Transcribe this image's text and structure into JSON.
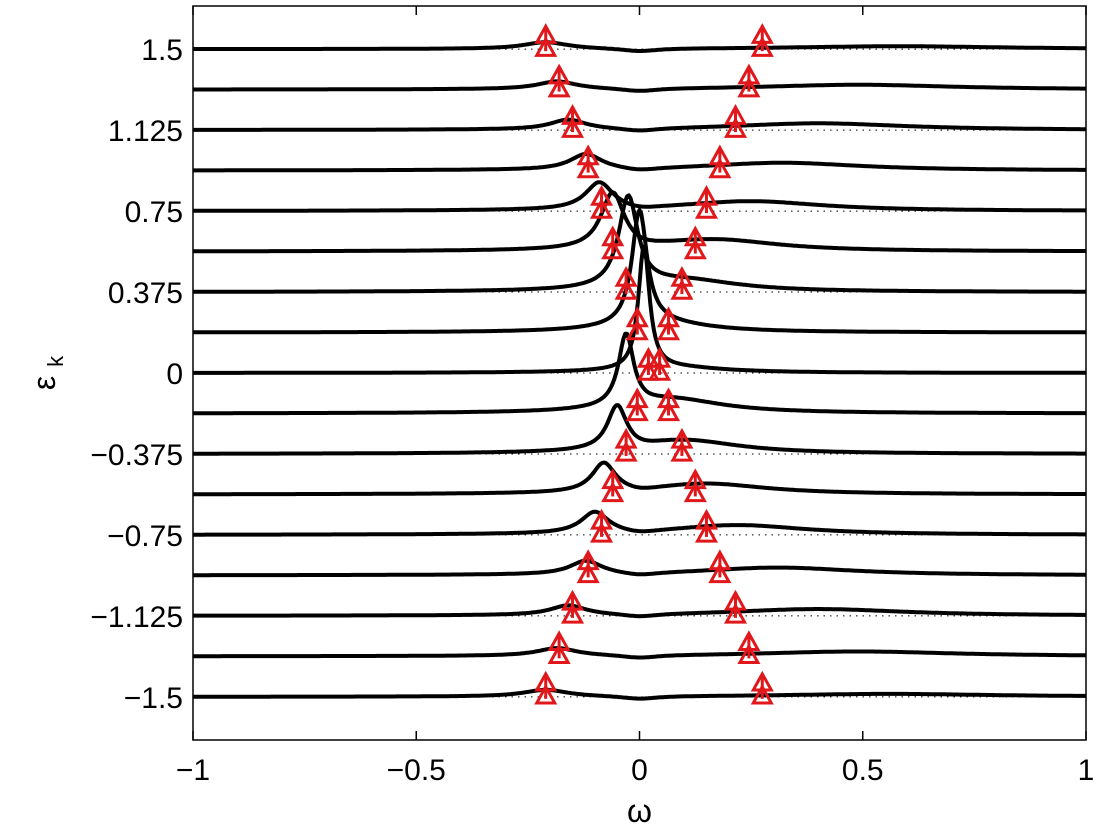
{
  "chart_data": {
    "type": "line",
    "title": "",
    "xlabel": "ω",
    "ylabel_main": "ε",
    "ylabel_sub": "k",
    "xlim": [
      -1,
      1
    ],
    "ylim": [
      -1.7,
      1.7
    ],
    "grid": "dotted horizontal reference line at each labeled ε_k",
    "legend": "none",
    "x_ticks": [
      -1,
      -0.5,
      0,
      0.5,
      1
    ],
    "x_tick_labels": [
      "−1",
      "−0.5",
      "0",
      "0.5",
      "1"
    ],
    "y_ticks": [
      -1.5,
      -1.125,
      -0.75,
      -0.375,
      0,
      0.375,
      0.75,
      1.125,
      1.5
    ],
    "y_tick_labels": [
      "−1.5",
      "−1.125",
      "−0.75",
      "−0.375",
      "0",
      "0.375",
      "0.75",
      "1.125",
      "1.5"
    ],
    "curve_color": "#000000",
    "marker_color": "#e0181b",
    "marker_shape": "triangle",
    "series": [
      {
        "eps": 1.5,
        "peaks": [
          {
            "x": -0.21,
            "h": 0.07
          },
          {
            "x": 0.58,
            "h": 0.03
          }
        ]
      },
      {
        "eps": 1.3125,
        "peaks": [
          {
            "x": -0.185,
            "h": 0.08
          },
          {
            "x": 0.49,
            "h": 0.05
          }
        ]
      },
      {
        "eps": 1.125,
        "peaks": [
          {
            "x": -0.16,
            "h": 0.1
          },
          {
            "x": 0.4,
            "h": 0.07
          }
        ]
      },
      {
        "eps": 0.9375,
        "peaks": [
          {
            "x": -0.12,
            "h": 0.16
          },
          {
            "x": 0.32,
            "h": 0.08
          }
        ]
      },
      {
        "eps": 0.75,
        "peaks": [
          {
            "x": -0.09,
            "h": 0.28
          },
          {
            "x": 0.25,
            "h": 0.1
          }
        ]
      },
      {
        "eps": 0.5625,
        "peaks": [
          {
            "x": -0.06,
            "h": 0.58
          },
          {
            "x": 0.17,
            "h": 0.12
          }
        ]
      },
      {
        "eps": 0.375,
        "peaks": [
          {
            "x": -0.025,
            "h": 0.95
          },
          {
            "x": 0.1,
            "h": 0.12
          }
        ]
      },
      {
        "eps": 0.1875,
        "peaks": [
          {
            "x": 0.0,
            "h": 1.2
          },
          {
            "x": 0.04,
            "h": 0.1
          }
        ]
      },
      {
        "eps": 0.0,
        "peaks": [
          {
            "x": 0.01,
            "h": 1.3
          },
          {
            "x": 0.07,
            "h": 0.06
          }
        ]
      },
      {
        "eps": -0.1875,
        "peaks": [
          {
            "x": -0.03,
            "h": 0.75
          },
          {
            "x": 0.07,
            "h": 0.15
          }
        ]
      },
      {
        "eps": -0.375,
        "peaks": [
          {
            "x": -0.05,
            "h": 0.45
          },
          {
            "x": 0.1,
            "h": 0.14
          }
        ]
      },
      {
        "eps": -0.5625,
        "peaks": [
          {
            "x": -0.08,
            "h": 0.3
          },
          {
            "x": 0.15,
            "h": 0.11
          }
        ]
      },
      {
        "eps": -0.75,
        "peaks": [
          {
            "x": -0.1,
            "h": 0.22
          },
          {
            "x": 0.22,
            "h": 0.1
          }
        ]
      },
      {
        "eps": -0.9375,
        "peaks": [
          {
            "x": -0.12,
            "h": 0.14
          },
          {
            "x": 0.31,
            "h": 0.08
          }
        ]
      },
      {
        "eps": -1.125,
        "peaks": [
          {
            "x": -0.16,
            "h": 0.1
          },
          {
            "x": 0.4,
            "h": 0.07
          }
        ]
      },
      {
        "eps": -1.3125,
        "peaks": [
          {
            "x": -0.185,
            "h": 0.08
          },
          {
            "x": 0.49,
            "h": 0.05
          }
        ]
      },
      {
        "eps": -1.5,
        "peaks": [
          {
            "x": -0.21,
            "h": 0.07
          },
          {
            "x": 0.56,
            "h": 0.03
          }
        ]
      }
    ],
    "markers": [
      {
        "eps": 1.5,
        "x": [
          -0.21,
          0.275
        ]
      },
      {
        "eps": 1.3125,
        "x": [
          -0.18,
          0.245
        ]
      },
      {
        "eps": 1.125,
        "x": [
          -0.15,
          0.215
        ]
      },
      {
        "eps": 0.9375,
        "x": [
          -0.115,
          0.18
        ]
      },
      {
        "eps": 0.75,
        "x": [
          -0.085,
          0.15
        ]
      },
      {
        "eps": 0.5625,
        "x": [
          -0.06,
          0.125
        ]
      },
      {
        "eps": 0.375,
        "x": [
          -0.03,
          0.095
        ]
      },
      {
        "eps": 0.1875,
        "x": [
          -0.005,
          0.065
        ]
      },
      {
        "eps": 0.0,
        "x": [
          0.02,
          0.045
        ]
      },
      {
        "eps": -0.1875,
        "x": [
          -0.005,
          0.065
        ]
      },
      {
        "eps": -0.375,
        "x": [
          -0.03,
          0.095
        ]
      },
      {
        "eps": -0.5625,
        "x": [
          -0.06,
          0.125
        ]
      },
      {
        "eps": -0.75,
        "x": [
          -0.085,
          0.15
        ]
      },
      {
        "eps": -0.9375,
        "x": [
          -0.115,
          0.18
        ]
      },
      {
        "eps": -1.125,
        "x": [
          -0.15,
          0.215
        ]
      },
      {
        "eps": -1.3125,
        "x": [
          -0.18,
          0.245
        ]
      },
      {
        "eps": -1.5,
        "x": [
          -0.21,
          0.275
        ]
      }
    ]
  }
}
